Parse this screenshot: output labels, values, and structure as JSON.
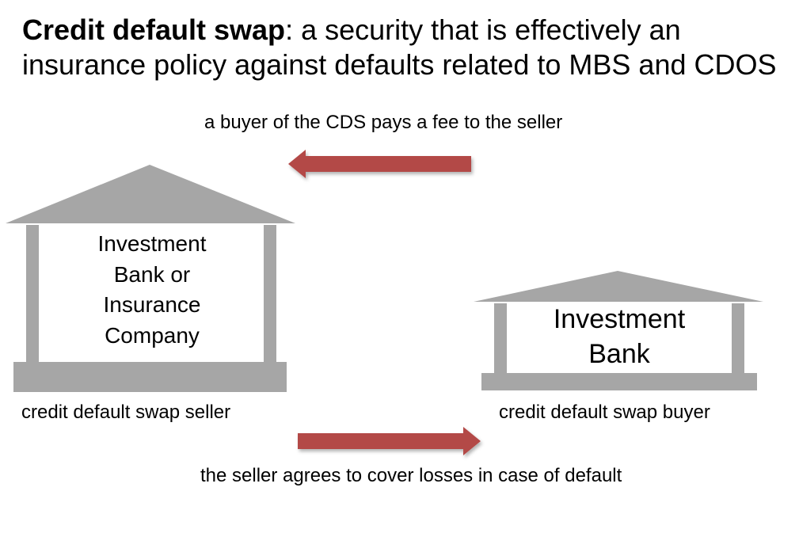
{
  "heading": {
    "term": "Credit default swap",
    "definition": ": a security that is effectively an insurance policy against defaults related to MBS and CDOS"
  },
  "fee_note": "a buyer of the CDS pays a fee to the seller",
  "coverage_note": "the seller agrees to cover losses in case of default",
  "seller": {
    "building_text": "Investment Bank or Insurance Company",
    "caption": "credit default swap seller"
  },
  "buyer": {
    "building_text": "Investment Bank",
    "caption": "credit default swap buyer"
  },
  "colors": {
    "arrow": "#b34a47",
    "building": "#a6a6a6"
  }
}
